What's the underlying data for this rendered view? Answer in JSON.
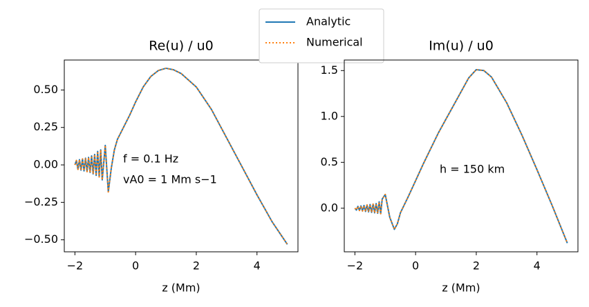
{
  "chart_data": [
    {
      "type": "line",
      "title": "Re(u) / u0",
      "x_label": "z  (Mm)",
      "x": [
        -2.0,
        -1.95,
        -1.9,
        -1.85,
        -1.8,
        -1.75,
        -1.7,
        -1.65,
        -1.6,
        -1.55,
        -1.5,
        -1.45,
        -1.4,
        -1.35,
        -1.3,
        -1.25,
        -1.2,
        -1.15,
        -1.1,
        -1.0,
        -0.9,
        -0.8,
        -0.7,
        -0.6,
        -0.5,
        -0.4,
        -0.2,
        0,
        0.25,
        0.5,
        0.75,
        1.0,
        1.25,
        1.5,
        2.0,
        2.5,
        3.0,
        3.5,
        4.0,
        4.5,
        5.0
      ],
      "series": [
        {
          "name": "Analytic",
          "color": "#1f77b4",
          "dash": "solid",
          "values": [
            0.0,
            0.03,
            -0.03,
            0.035,
            -0.035,
            0.04,
            -0.04,
            0.045,
            -0.045,
            0.05,
            -0.05,
            0.06,
            -0.06,
            0.07,
            -0.07,
            0.09,
            -0.08,
            0.1,
            -0.1,
            0.13,
            -0.18,
            -0.02,
            0.1,
            0.17,
            0.21,
            0.25,
            0.33,
            0.42,
            0.52,
            0.59,
            0.63,
            0.645,
            0.635,
            0.61,
            0.52,
            0.37,
            0.18,
            -0.01,
            -0.2,
            -0.38,
            -0.53
          ]
        },
        {
          "name": "Numerical",
          "color": "#ff7f0e",
          "dash": "dotted",
          "values": [
            0.0,
            0.03,
            -0.03,
            0.035,
            -0.035,
            0.04,
            -0.04,
            0.045,
            -0.045,
            0.05,
            -0.05,
            0.06,
            -0.06,
            0.07,
            -0.07,
            0.09,
            -0.08,
            0.1,
            -0.1,
            0.13,
            -0.18,
            -0.02,
            0.1,
            0.17,
            0.21,
            0.25,
            0.33,
            0.42,
            0.52,
            0.59,
            0.63,
            0.645,
            0.635,
            0.61,
            0.52,
            0.37,
            0.18,
            -0.01,
            -0.2,
            -0.38,
            -0.53
          ]
        }
      ],
      "xlim": [
        -2.35,
        5.35
      ],
      "xticks": [
        {
          "value": -2,
          "label": "−2"
        },
        0,
        2,
        4
      ],
      "ylim": [
        -0.58,
        0.7
      ],
      "yticks": [
        {
          "value": -0.5,
          "label": "−0.50"
        },
        {
          "value": -0.25,
          "label": "−0.25"
        },
        {
          "value": 0,
          "label": "0.00"
        },
        {
          "value": 0.25,
          "label": "0.25"
        },
        {
          "value": 0.5,
          "label": "0.50"
        }
      ],
      "annotations": [
        "f = 0.1 Hz",
        "vA0 = 1 Mm s−1"
      ],
      "legend": "upper center"
    },
    {
      "type": "line",
      "title": "Im(u) / u0",
      "x_label": "z  (Mm)",
      "x": [
        -2.0,
        -1.95,
        -1.9,
        -1.85,
        -1.8,
        -1.75,
        -1.7,
        -1.65,
        -1.6,
        -1.55,
        -1.5,
        -1.45,
        -1.4,
        -1.35,
        -1.3,
        -1.25,
        -1.2,
        -1.15,
        -1.1,
        -1.0,
        -0.85,
        -0.7,
        -0.6,
        -0.5,
        -0.25,
        0,
        0.25,
        0.5,
        0.75,
        1.0,
        1.25,
        1.5,
        1.75,
        2.0,
        2.25,
        2.5,
        3.0,
        3.5,
        4.0,
        4.5,
        5.0
      ],
      "series": [
        {
          "name": "Analytic",
          "color": "#1f77b4",
          "dash": "solid",
          "values": [
            0.0,
            -0.02,
            0.02,
            -0.025,
            0.025,
            -0.03,
            0.03,
            -0.035,
            0.035,
            -0.04,
            0.04,
            -0.045,
            0.045,
            -0.05,
            0.05,
            -0.055,
            0.07,
            -0.06,
            0.1,
            0.15,
            -0.1,
            -0.23,
            -0.17,
            -0.05,
            0.12,
            0.3,
            0.48,
            0.65,
            0.82,
            0.97,
            1.12,
            1.27,
            1.42,
            1.51,
            1.5,
            1.43,
            1.15,
            0.8,
            0.42,
            0.03,
            -0.38
          ]
        },
        {
          "name": "Numerical",
          "color": "#ff7f0e",
          "dash": "dotted",
          "values": [
            0.0,
            -0.02,
            0.02,
            -0.025,
            0.025,
            -0.03,
            0.03,
            -0.035,
            0.035,
            -0.04,
            0.04,
            -0.045,
            0.045,
            -0.05,
            0.05,
            -0.055,
            0.07,
            -0.06,
            0.1,
            0.15,
            -0.1,
            -0.23,
            -0.17,
            -0.05,
            0.12,
            0.3,
            0.48,
            0.65,
            0.82,
            0.97,
            1.12,
            1.27,
            1.42,
            1.51,
            1.5,
            1.43,
            1.15,
            0.8,
            0.42,
            0.03,
            -0.38
          ]
        }
      ],
      "xlim": [
        -2.35,
        5.35
      ],
      "xticks": [
        {
          "value": -2,
          "label": "−2"
        },
        0,
        2,
        4
      ],
      "ylim": [
        -0.475,
        1.615
      ],
      "yticks": [
        {
          "value": 0,
          "label": "0.0"
        },
        0.5,
        {
          "value": 1,
          "label": "1.0"
        },
        1.5
      ],
      "annotations": [
        "h = 150 km"
      ]
    }
  ]
}
